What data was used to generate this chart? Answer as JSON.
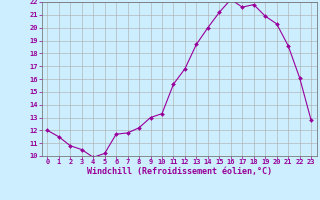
{
  "x": [
    0,
    1,
    2,
    3,
    4,
    5,
    6,
    7,
    8,
    9,
    10,
    11,
    12,
    13,
    14,
    15,
    16,
    17,
    18,
    19,
    20,
    21,
    22,
    23
  ],
  "y": [
    12.0,
    11.5,
    10.8,
    10.5,
    9.9,
    10.2,
    11.7,
    11.8,
    12.2,
    13.0,
    13.3,
    15.6,
    16.8,
    18.7,
    20.0,
    21.2,
    22.2,
    21.6,
    21.8,
    20.9,
    20.3,
    18.6,
    16.1,
    12.8
  ],
  "line_color": "#990099",
  "marker": "D",
  "marker_size": 2.0,
  "background_color": "#cceeff",
  "grid_color": "#aaaaaa",
  "xlabel": "Windchill (Refroidissement éolien,°C)",
  "ylabel": "",
  "ylim": [
    10,
    22
  ],
  "xlim": [
    -0.5,
    23.5
  ],
  "yticks": [
    10,
    11,
    12,
    13,
    14,
    15,
    16,
    17,
    18,
    19,
    20,
    21,
    22
  ],
  "xticks": [
    0,
    1,
    2,
    3,
    4,
    5,
    6,
    7,
    8,
    9,
    10,
    11,
    12,
    13,
    14,
    15,
    16,
    17,
    18,
    19,
    20,
    21,
    22,
    23
  ],
  "tick_color": "#990099",
  "tick_fontsize": 5.0,
  "xlabel_fontsize": 6.0,
  "xlabel_color": "#990099",
  "line_width": 0.8
}
